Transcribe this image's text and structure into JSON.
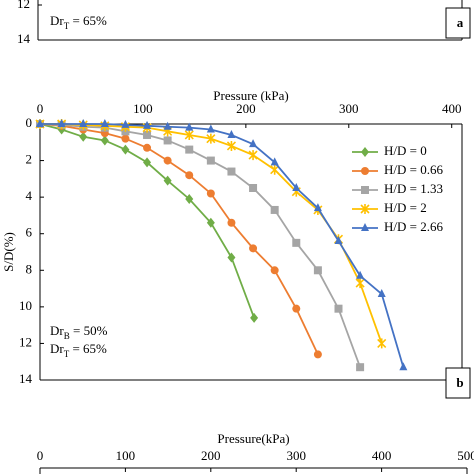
{
  "chart_data": [
    {
      "type": "line",
      "panel_label": "a",
      "ylim": [
        0,
        14
      ],
      "yticks": [
        12,
        14
      ],
      "annotations": [
        [
          "Dr",
          "T",
          " = 65%"
        ]
      ]
    },
    {
      "type": "line",
      "panel_label": "b",
      "xlabel": "Pressure (kPa)",
      "ylabel": "S/D(%)",
      "xlim": [
        0,
        410
      ],
      "xticks": [
        0,
        100,
        200,
        300,
        400
      ],
      "ylim": [
        0,
        14
      ],
      "yticks": [
        0,
        2,
        4,
        6,
        8,
        10,
        12,
        14
      ],
      "legend": "upper right",
      "annotations": [
        [
          "Dr",
          "B",
          " = 50%"
        ],
        [
          "Dr",
          "T",
          " = 65%"
        ]
      ],
      "series": [
        {
          "name": "H/D = 0",
          "color": "#70ad47",
          "marker": "diamond",
          "x": [
            0,
            21,
            42,
            63,
            83,
            104,
            124,
            145,
            166,
            186,
            208
          ],
          "values": [
            0,
            0.3,
            0.7,
            0.9,
            1.4,
            2.1,
            3.1,
            4.1,
            5.4,
            7.3,
            10.6
          ]
        },
        {
          "name": "H/D = 0.66",
          "color": "#ed7d31",
          "marker": "circle",
          "x": [
            0,
            21,
            42,
            63,
            83,
            104,
            124,
            145,
            166,
            186,
            207,
            228,
            249,
            270
          ],
          "values": [
            0,
            0.1,
            0.3,
            0.5,
            0.8,
            1.3,
            2.0,
            2.8,
            3.8,
            5.4,
            6.8,
            8.0,
            10.1,
            12.6
          ]
        },
        {
          "name": "H/D = 1.33",
          "color": "#a5a5a5",
          "marker": "square",
          "x": [
            0,
            21,
            42,
            63,
            83,
            104,
            124,
            145,
            166,
            186,
            207,
            228,
            249,
            270,
            290,
            311
          ],
          "values": [
            0,
            0.05,
            0.15,
            0.2,
            0.4,
            0.6,
            0.9,
            1.4,
            2.0,
            2.6,
            3.5,
            4.7,
            6.5,
            8.0,
            10.1,
            13.3
          ]
        },
        {
          "name": "H/D = 2",
          "color": "#ffc000",
          "marker": "star",
          "x": [
            0,
            21,
            42,
            63,
            83,
            104,
            124,
            145,
            166,
            186,
            207,
            228,
            249,
            270,
            290,
            311,
            332
          ],
          "values": [
            0,
            0,
            0.05,
            0.1,
            0.15,
            0.2,
            0.4,
            0.6,
            0.8,
            1.2,
            1.7,
            2.5,
            3.7,
            4.7,
            6.3,
            8.7,
            12.0
          ]
        },
        {
          "name": "H/D = 2.66",
          "color": "#4472c4",
          "marker": "triangle",
          "x": [
            0,
            21,
            42,
            63,
            83,
            104,
            124,
            145,
            166,
            186,
            207,
            228,
            249,
            270,
            290,
            311,
            332,
            353
          ],
          "values": [
            0,
            0,
            0,
            0,
            0.05,
            0.1,
            0.15,
            0.2,
            0.3,
            0.6,
            1.1,
            2.1,
            3.5,
            4.6,
            6.4,
            8.3,
            9.3,
            13.3
          ]
        }
      ]
    },
    {
      "type": "line",
      "xlabel": "Pressure(kPa)",
      "xlim": [
        0,
        500
      ],
      "xticks": [
        0,
        100,
        200,
        300,
        400,
        500
      ]
    }
  ]
}
